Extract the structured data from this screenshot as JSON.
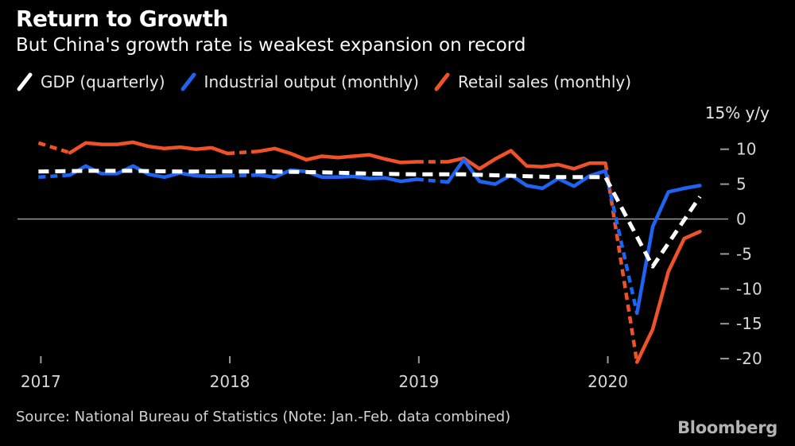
{
  "header": {
    "title": "Return to Growth",
    "subtitle": "But China's growth rate is weakest expansion on record"
  },
  "legend": [
    {
      "label": "GDP (quarterly)",
      "color": "#ffffff"
    },
    {
      "label": "Industrial output (monthly)",
      "color": "#1d64f2"
    },
    {
      "label": "Retail sales (monthly)",
      "color": "#ef5227"
    }
  ],
  "footer": {
    "source": "Source: National Bureau of Statistics (Note: Jan.-Feb. data combined)",
    "brand": "Bloomberg"
  },
  "chart_data": {
    "type": "line",
    "title": "Return to Growth",
    "subtitle": "But China's growth rate is weakest expansion on record",
    "y_axis_title": "15% y/y",
    "y_ticks": [
      10,
      5,
      0,
      -5,
      -10,
      -15,
      -20
    ],
    "ylim": [
      -22.5,
      15
    ],
    "grid": "zero-line-only",
    "x_unit": "months after Dec 2016 (Jan.-Feb. combined each year, shown as dashed gap)",
    "x_ticks": [
      {
        "label": "2017",
        "month": 0.15
      },
      {
        "label": "2018",
        "month": 12.15
      },
      {
        "label": "2019",
        "month": 24.15
      },
      {
        "label": "2020",
        "month": 36.15
      }
    ],
    "series": [
      {
        "name": "GDP (quarterly)",
        "color": "#ffffff",
        "line_style": "dashed",
        "width": 5,
        "x": [
          0,
          3,
          6,
          9,
          12,
          15,
          18,
          21,
          24,
          27,
          30,
          33,
          36,
          39,
          42
        ],
        "values": [
          6.8,
          6.9,
          6.9,
          6.8,
          6.8,
          6.8,
          6.7,
          6.5,
          6.4,
          6.4,
          6.2,
          6.0,
          6.0,
          -6.8,
          3.2
        ]
      },
      {
        "name": "Industrial output (monthly)",
        "color": "#1d64f2",
        "line_style": "solid",
        "width": 4.5,
        "dashed_x_spans": [
          [
            0,
            2
          ],
          [
            12,
            14
          ],
          [
            24,
            26
          ],
          [
            36,
            38
          ]
        ],
        "x": [
          0,
          2,
          3,
          4,
          5,
          6,
          7,
          8,
          9,
          10,
          11,
          12,
          14,
          15,
          16,
          17,
          18,
          19,
          20,
          21,
          22,
          23,
          24,
          26,
          27,
          28,
          29,
          30,
          31,
          32,
          33,
          34,
          35,
          36,
          38,
          39,
          40,
          41,
          42
        ],
        "values": [
          6.0,
          6.3,
          7.6,
          6.5,
          6.5,
          7.6,
          6.4,
          6.0,
          6.6,
          6.2,
          6.1,
          6.2,
          6.3,
          6.0,
          7.0,
          6.8,
          6.0,
          6.0,
          6.1,
          5.8,
          5.9,
          5.4,
          5.7,
          5.3,
          8.5,
          5.4,
          5.0,
          6.3,
          4.8,
          4.4,
          5.8,
          4.7,
          6.2,
          6.9,
          -13.5,
          -1.1,
          3.9,
          4.4,
          4.8
        ]
      },
      {
        "name": "Retail sales (monthly)",
        "color": "#ef5227",
        "line_style": "solid",
        "width": 4.5,
        "dashed_x_spans": [
          [
            0,
            2
          ],
          [
            12,
            14
          ],
          [
            24,
            26
          ],
          [
            36,
            38
          ]
        ],
        "x": [
          0,
          2,
          3,
          4,
          5,
          6,
          7,
          8,
          9,
          10,
          11,
          12,
          14,
          15,
          16,
          17,
          18,
          19,
          20,
          21,
          22,
          23,
          24,
          26,
          27,
          28,
          29,
          30,
          31,
          32,
          33,
          34,
          35,
          36,
          38,
          39,
          40,
          41,
          42
        ],
        "values": [
          10.9,
          9.5,
          10.9,
          10.7,
          10.7,
          11.0,
          10.4,
          10.1,
          10.3,
          10.0,
          10.2,
          9.4,
          9.7,
          10.1,
          9.4,
          8.5,
          9.0,
          8.8,
          9.0,
          9.2,
          8.6,
          8.1,
          8.2,
          8.2,
          8.7,
          7.2,
          8.6,
          9.8,
          7.6,
          7.5,
          7.8,
          7.2,
          8.0,
          8.0,
          -20.5,
          -15.8,
          -7.5,
          -2.8,
          -1.8
        ]
      }
    ]
  }
}
